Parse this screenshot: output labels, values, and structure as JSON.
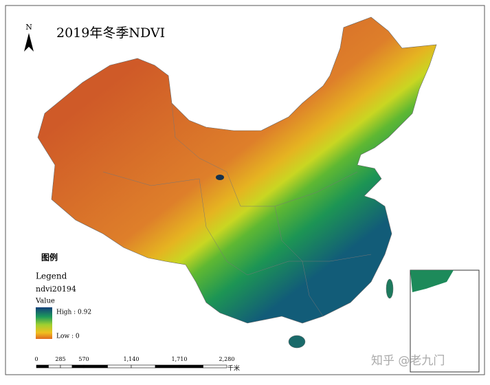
{
  "map": {
    "title": "2019年冬季NDVI",
    "north_label": "N"
  },
  "legend": {
    "heading": "图例",
    "title": "Legend",
    "layer": "ndvi20194",
    "field": "Value",
    "high": "High : 0.92",
    "low": "Low : 0"
  },
  "scale_bar": {
    "ticks": [
      "0",
      "285",
      "570",
      "1,140",
      "1,710",
      "2,280"
    ],
    "unit": "千米"
  },
  "watermark": "知乎 @老九门"
}
